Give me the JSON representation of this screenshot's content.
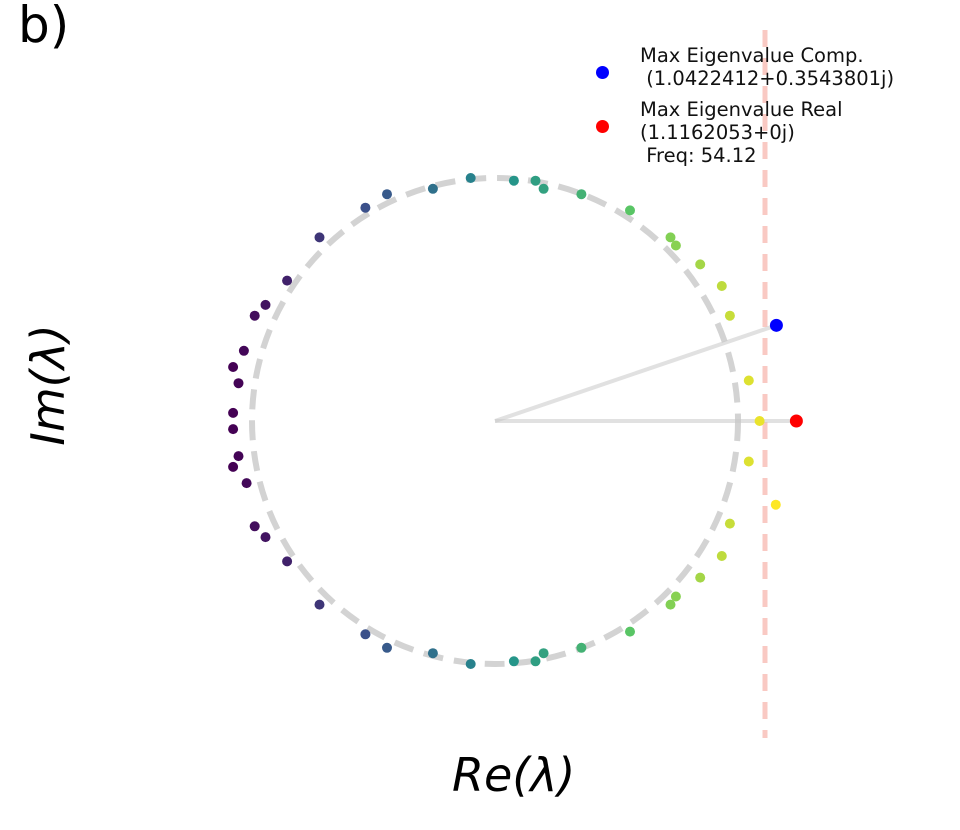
{
  "panel_label": "b)",
  "chart_data": {
    "type": "scatter",
    "xlabel": "Re(λ)",
    "ylabel": "Im(λ)",
    "axes_visible": false,
    "grid": false,
    "legend_placement": "top-right",
    "unit_circle": {
      "radius": 1.0,
      "style": "dashed",
      "color": "#d3d3d3"
    },
    "reference_line": {
      "x": 1.0,
      "style": "dashed",
      "color": "#f9c9c3"
    },
    "colormap": "viridis",
    "legend": [
      {
        "label": "Max Eigenvalue Comp.\n (1.0422412+0.3543801j)",
        "color": "#0000ff"
      },
      {
        "label": "Max Eigenvalue Real\n(1.1162053+0j)\n Freq: 54.12",
        "color": "#ff0000"
      }
    ],
    "highlighted": [
      {
        "name": "Max Eigenvalue Comp.",
        "x": 1.0422412,
        "y": 0.3543801,
        "color": "#0000ff"
      },
      {
        "name": "Max Eigenvalue Real",
        "x": 1.1162053,
        "y": 0.0,
        "color": "#ff0000"
      }
    ],
    "eigenvalues": [
      {
        "x": -0.97,
        "y": 0.2
      },
      {
        "x": -0.95,
        "y": 0.14
      },
      {
        "x": -0.97,
        "y": 0.03
      },
      {
        "x": -0.97,
        "y": -0.03
      },
      {
        "x": -0.95,
        "y": -0.13
      },
      {
        "x": -0.97,
        "y": -0.17
      },
      {
        "x": -0.93,
        "y": 0.26
      },
      {
        "x": -0.92,
        "y": -0.23
      },
      {
        "x": -0.89,
        "y": 0.39
      },
      {
        "x": -0.85,
        "y": 0.43
      },
      {
        "x": -0.89,
        "y": -0.39
      },
      {
        "x": -0.85,
        "y": -0.43
      },
      {
        "x": -0.77,
        "y": 0.52
      },
      {
        "x": -0.77,
        "y": -0.52
      },
      {
        "x": -0.65,
        "y": 0.68
      },
      {
        "x": -0.65,
        "y": -0.68
      },
      {
        "x": -0.48,
        "y": 0.79
      },
      {
        "x": -0.48,
        "y": -0.79
      },
      {
        "x": -0.4,
        "y": 0.84
      },
      {
        "x": -0.4,
        "y": -0.84
      },
      {
        "x": -0.23,
        "y": 0.86
      },
      {
        "x": -0.23,
        "y": -0.86
      },
      {
        "x": -0.09,
        "y": 0.9
      },
      {
        "x": -0.09,
        "y": -0.9
      },
      {
        "x": 0.07,
        "y": 0.89
      },
      {
        "x": 0.07,
        "y": -0.89
      },
      {
        "x": 0.15,
        "y": 0.89
      },
      {
        "x": 0.15,
        "y": -0.89
      },
      {
        "x": 0.18,
        "y": 0.86
      },
      {
        "x": 0.18,
        "y": -0.86
      },
      {
        "x": 0.32,
        "y": 0.84
      },
      {
        "x": 0.32,
        "y": -0.84
      },
      {
        "x": 0.5,
        "y": 0.78
      },
      {
        "x": 0.5,
        "y": -0.78
      },
      {
        "x": 0.65,
        "y": 0.68
      },
      {
        "x": 0.65,
        "y": -0.68
      },
      {
        "x": 0.67,
        "y": 0.65
      },
      {
        "x": 0.67,
        "y": -0.65
      },
      {
        "x": 0.76,
        "y": 0.58
      },
      {
        "x": 0.76,
        "y": -0.58
      },
      {
        "x": 0.84,
        "y": 0.5
      },
      {
        "x": 0.84,
        "y": -0.5
      },
      {
        "x": 0.87,
        "y": 0.39
      },
      {
        "x": 0.87,
        "y": -0.38
      },
      {
        "x": 0.94,
        "y": 0.15
      },
      {
        "x": 0.94,
        "y": -0.15
      },
      {
        "x": 0.98,
        "y": 0.0
      },
      {
        "x": 1.04,
        "y": -0.31
      }
    ]
  }
}
